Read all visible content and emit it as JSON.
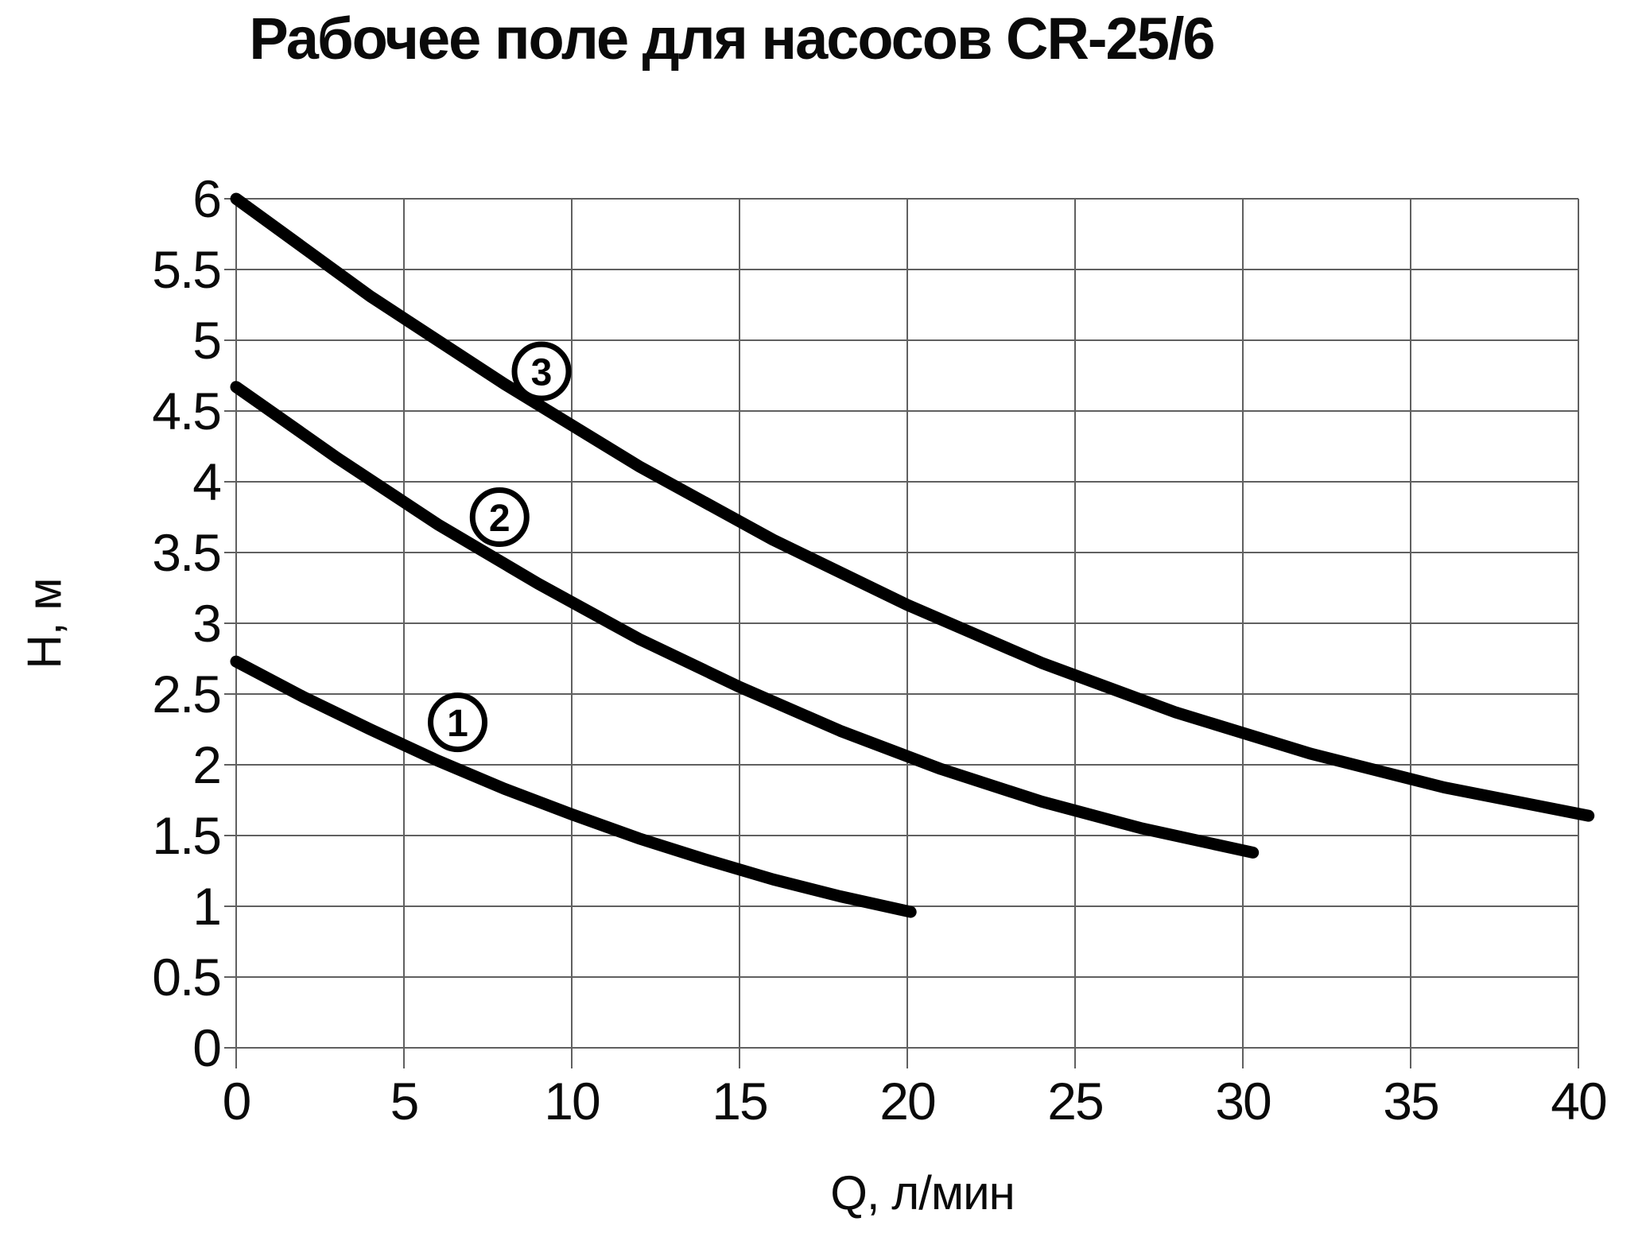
{
  "title": "Рабочее поле для насосов CR-25/6",
  "chart_data": {
    "type": "line",
    "title": "Рабочее поле для насосов CR-25/6",
    "xlabel": "Q, л/мин",
    "ylabel": "Н, м",
    "xlim": [
      0,
      40
    ],
    "ylim": [
      0,
      6
    ],
    "x_ticks": [
      0,
      5,
      10,
      15,
      20,
      25,
      30,
      35,
      40
    ],
    "y_ticks": [
      0,
      0.5,
      1,
      1.5,
      2,
      2.5,
      3,
      3.5,
      4,
      4.5,
      5,
      5.5,
      6
    ],
    "grid": true,
    "legend_position": "inline-circled-numbers",
    "line_color": "#000000",
    "grid_color": "#606060",
    "series": [
      {
        "name": "1",
        "label": "1",
        "label_pos": {
          "q": 6.6,
          "h": 2.3
        },
        "points": [
          [
            0,
            2.73
          ],
          [
            2,
            2.48
          ],
          [
            4,
            2.25
          ],
          [
            6,
            2.03
          ],
          [
            8,
            1.83
          ],
          [
            10,
            1.65
          ],
          [
            12,
            1.48
          ],
          [
            14,
            1.33
          ],
          [
            16,
            1.19
          ],
          [
            18,
            1.07
          ],
          [
            20.1,
            0.96
          ]
        ]
      },
      {
        "name": "2",
        "label": "2",
        "label_pos": {
          "q": 7.85,
          "h": 3.75
        },
        "points": [
          [
            0,
            4.67
          ],
          [
            3,
            4.17
          ],
          [
            6,
            3.7
          ],
          [
            9,
            3.28
          ],
          [
            12,
            2.89
          ],
          [
            15,
            2.55
          ],
          [
            18,
            2.24
          ],
          [
            21,
            1.97
          ],
          [
            24,
            1.74
          ],
          [
            27,
            1.55
          ],
          [
            30.3,
            1.38
          ]
        ]
      },
      {
        "name": "3",
        "label": "3",
        "label_pos": {
          "q": 9.1,
          "h": 4.78
        },
        "points": [
          [
            0,
            6.0
          ],
          [
            4,
            5.31
          ],
          [
            8,
            4.69
          ],
          [
            12,
            4.11
          ],
          [
            16,
            3.59
          ],
          [
            20,
            3.13
          ],
          [
            24,
            2.72
          ],
          [
            28,
            2.37
          ],
          [
            32,
            2.08
          ],
          [
            36,
            1.84
          ],
          [
            40.3,
            1.64
          ]
        ]
      }
    ]
  }
}
